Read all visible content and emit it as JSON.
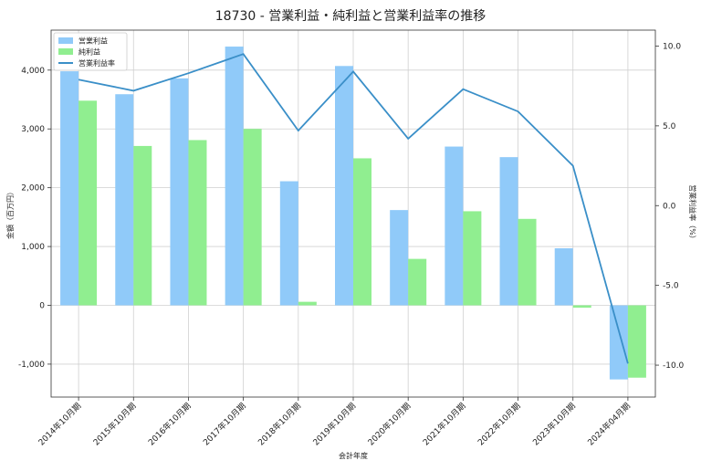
{
  "chart_data": {
    "type": "bar",
    "title": "18730 - 営業利益・純利益と営業利益率の推移",
    "xlabel": "会計年度",
    "ylabel": "金額（百万円）",
    "y2label": "営業利益率（%）",
    "categories": [
      "2014年10月期",
      "2015年10月期",
      "2016年10月期",
      "2017年10月期",
      "2018年10月期",
      "2019年10月期",
      "2020年10月期",
      "2021年10月期",
      "2022年10月期",
      "2023年10月期",
      "2024年04月期"
    ],
    "series": [
      {
        "name": "営業利益",
        "kind": "bar",
        "axis": "left",
        "color": "#90caf9",
        "values": [
          3980,
          3590,
          3860,
          4400,
          2110,
          4070,
          1620,
          2700,
          2520,
          970,
          -1260
        ]
      },
      {
        "name": "純利益",
        "kind": "bar",
        "axis": "left",
        "color": "#90ee90",
        "values": [
          3480,
          2710,
          2810,
          3000,
          60,
          2500,
          790,
          1600,
          1470,
          -40,
          -1230
        ]
      },
      {
        "name": "営業利益率",
        "kind": "line",
        "axis": "right",
        "color": "#3a8fc8",
        "values": [
          7.9,
          7.2,
          8.3,
          9.5,
          4.7,
          8.4,
          4.2,
          7.3,
          5.9,
          2.5,
          -9.9
        ]
      }
    ],
    "ylim": [
      -1560,
      4680
    ],
    "y_ticks": [
      -1000,
      0,
      1000,
      2000,
      3000,
      4000
    ],
    "y_tick_labels": [
      "-1,000",
      "0",
      "1,000",
      "2,000",
      "3,000",
      "4,000"
    ],
    "y2lim": [
      -12.0,
      11.0
    ],
    "y2_ticks": [
      -10.0,
      -5.0,
      0.0,
      5.0,
      10.0
    ],
    "y2_tick_labels": [
      "-10.0",
      "-5.0",
      "0.0",
      "5.0",
      "10.0"
    ],
    "grid": true,
    "legend": "top-left"
  }
}
